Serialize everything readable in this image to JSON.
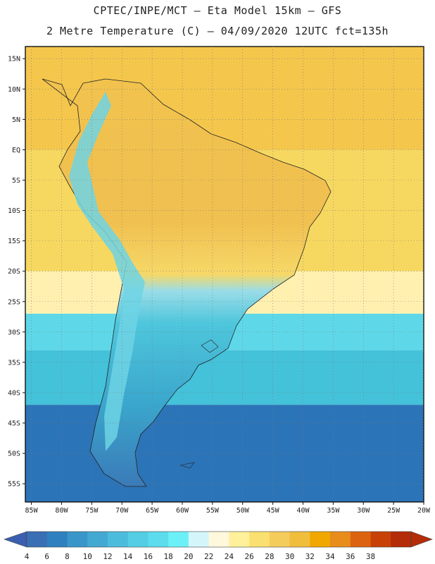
{
  "header": {
    "title_line1": "CPTEC/INPE/MCT —  Eta Model 15km — GFS",
    "title_line2": "2 Metre Temperature (C) — 04/09/2020 12UTC fct=135h"
  },
  "map": {
    "lat_labels": [
      "15N",
      "10N",
      "5N",
      "EQ",
      "5S",
      "10S",
      "15S",
      "20S",
      "25S",
      "30S",
      "35S",
      "40S",
      "45S",
      "50S",
      "55S"
    ],
    "lon_labels": [
      "85W",
      "80W",
      "75W",
      "70W",
      "65W",
      "60W",
      "55W",
      "50W",
      "45W",
      "40W",
      "35W",
      "30W",
      "25W",
      "20W"
    ],
    "ocean_bands": [
      {
        "from": "15N",
        "to": "EQ",
        "color": "#f4c64c"
      },
      {
        "from": "EQ",
        "to": "20S",
        "color": "#f6d860"
      },
      {
        "from": "20S",
        "to": "27S",
        "color": "#fff0b0"
      },
      {
        "from": "27S",
        "to": "33S",
        "color": "#5ed8e8"
      },
      {
        "from": "33S",
        "to": "42S",
        "color": "#44c2da"
      },
      {
        "from": "42S",
        "to": "58S",
        "color": "#2c74b8"
      }
    ]
  },
  "colorbar": {
    "labels": [
      "4",
      "6",
      "8",
      "10",
      "12",
      "14",
      "16",
      "18",
      "20",
      "22",
      "24",
      "26",
      "28",
      "30",
      "32",
      "34",
      "36",
      "38"
    ],
    "colors": [
      "#3a6fb4",
      "#2f80be",
      "#3a96c8",
      "#44a9d2",
      "#4cbcdc",
      "#55cde4",
      "#5cdcec",
      "#6cf0f8",
      "#d4f6fb",
      "#fff8dc",
      "#fff09a",
      "#fae070",
      "#f4cc5c",
      "#f0be3c",
      "#f0a800",
      "#e88c1c",
      "#dc6410",
      "#c84208",
      "#b42c08"
    ],
    "low_color": "#3a5fb0",
    "high_color": "#b42c08"
  }
}
